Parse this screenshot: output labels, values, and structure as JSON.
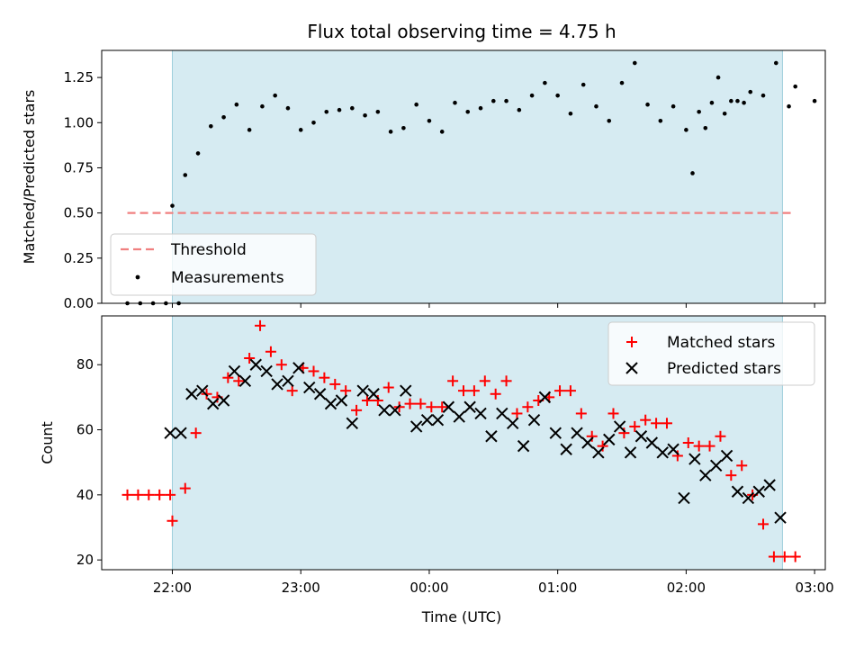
{
  "chart_data": [
    {
      "type": "scatter",
      "title": "Flux total observing time = 4.75 h",
      "ylabel": "Matched/Predicted stars",
      "xlabel": "",
      "ylim": [
        0,
        1.4
      ],
      "xlim": [
        "21:27",
        "03:05"
      ],
      "yticks": [
        "0.00",
        "0.25",
        "0.50",
        "0.75",
        "1.00",
        "1.25"
      ],
      "shaded_range": [
        "22:00",
        "02:45"
      ],
      "threshold": {
        "label": "Threshold",
        "value": 0.5,
        "x_range": [
          "21:39",
          "02:49"
        ],
        "color": "#f08080"
      },
      "legend": {
        "placement": "lower-left",
        "entries": [
          "Threshold",
          "Measurements"
        ]
      },
      "series": [
        {
          "name": "Measurements",
          "marker": "dot",
          "color": "#000000",
          "x": [
            "21:39",
            "21:45",
            "21:51",
            "21:57",
            "22:03",
            "22:00",
            "22:06",
            "22:12",
            "22:18",
            "22:24",
            "22:30",
            "22:36",
            "22:42",
            "22:48",
            "22:54",
            "23:00",
            "23:06",
            "23:12",
            "23:18",
            "23:24",
            "23:30",
            "23:36",
            "23:42",
            "23:48",
            "23:54",
            "00:00",
            "00:06",
            "00:12",
            "00:18",
            "00:24",
            "00:30",
            "00:36",
            "00:42",
            "00:48",
            "00:54",
            "01:00",
            "01:06",
            "01:12",
            "01:18",
            "01:24",
            "01:30",
            "01:36",
            "01:42",
            "01:48",
            "01:54",
            "02:00",
            "02:06",
            "02:12",
            "02:18",
            "02:24",
            "02:30",
            "02:36",
            "02:42",
            "02:48",
            "02:51",
            "03:00",
            "02:27",
            "02:21",
            "02:15",
            "02:09",
            "02:03"
          ],
          "y": [
            0.0,
            0.0,
            0.0,
            0.0,
            0.0,
            0.54,
            0.71,
            0.83,
            0.98,
            1.03,
            1.1,
            0.96,
            1.09,
            1.15,
            1.08,
            0.96,
            1.0,
            1.06,
            1.07,
            1.08,
            1.04,
            1.06,
            0.95,
            0.97,
            1.1,
            1.01,
            0.95,
            1.11,
            1.06,
            1.08,
            1.12,
            1.12,
            1.07,
            1.15,
            1.22,
            1.15,
            1.05,
            1.21,
            1.09,
            1.01,
            1.22,
            1.33,
            1.1,
            1.01,
            1.09,
            0.96,
            1.06,
            1.11,
            1.05,
            1.12,
            1.17,
            1.15,
            1.33,
            1.09,
            1.2,
            1.12,
            1.11,
            1.12,
            1.25,
            0.97,
            0.72
          ]
        }
      ]
    },
    {
      "type": "scatter",
      "title": "",
      "ylabel": "Count",
      "xlabel": "Time (UTC)",
      "ylim": [
        17,
        95
      ],
      "xlim": [
        "21:27",
        "03:05"
      ],
      "xticks": [
        "22:00",
        "23:00",
        "00:00",
        "01:00",
        "02:00",
        "03:00"
      ],
      "yticks": [
        "20",
        "40",
        "60",
        "80"
      ],
      "shaded_range": [
        "22:00",
        "02:45"
      ],
      "legend": {
        "placement": "top-right",
        "entries": [
          "Matched stars",
          "Predicted stars"
        ]
      },
      "series": [
        {
          "name": "Matched stars",
          "marker": "plus",
          "color": "#ff0000",
          "x": [
            "21:39",
            "21:44",
            "21:49",
            "21:54",
            "21:59",
            "22:00",
            "22:06",
            "22:11",
            "22:16",
            "22:21",
            "22:26",
            "22:31",
            "22:36",
            "22:41",
            "22:46",
            "22:51",
            "22:56",
            "23:01",
            "23:06",
            "23:11",
            "23:16",
            "23:21",
            "23:26",
            "23:31",
            "23:36",
            "23:41",
            "23:46",
            "23:51",
            "23:56",
            "00:01",
            "00:06",
            "00:11",
            "00:16",
            "00:21",
            "00:26",
            "00:31",
            "00:36",
            "00:41",
            "00:46",
            "00:51",
            "00:56",
            "01:01",
            "01:06",
            "01:11",
            "01:16",
            "01:21",
            "01:26",
            "01:31",
            "01:36",
            "01:41",
            "01:46",
            "01:51",
            "01:56",
            "02:01",
            "02:06",
            "02:11",
            "02:16",
            "02:21",
            "02:26",
            "02:31",
            "02:36",
            "02:41",
            "02:46",
            "02:51"
          ],
          "y": [
            40,
            40,
            40,
            40,
            40,
            32,
            42,
            59,
            71,
            70,
            76,
            75,
            82,
            92,
            84,
            80,
            72,
            79,
            78,
            76,
            74,
            72,
            66,
            69,
            69,
            73,
            67,
            68,
            68,
            67,
            67,
            75,
            72,
            72,
            75,
            71,
            75,
            65,
            67,
            69,
            70,
            72,
            72,
            65,
            58,
            55,
            65,
            59,
            61,
            63,
            62,
            62,
            52,
            56,
            55,
            55,
            58,
            46,
            49,
            40,
            31,
            21,
            21,
            21
          ],
          "x_extra": []
        },
        {
          "name": "Predicted stars",
          "marker": "x",
          "color": "#000000",
          "x": [
            "21:59",
            "22:04",
            "22:09",
            "22:14",
            "22:19",
            "22:24",
            "22:29",
            "22:34",
            "22:39",
            "22:44",
            "22:49",
            "22:54",
            "22:59",
            "23:04",
            "23:09",
            "23:14",
            "23:19",
            "23:24",
            "23:29",
            "23:34",
            "23:39",
            "23:44",
            "23:49",
            "23:54",
            "23:59",
            "00:04",
            "00:09",
            "00:14",
            "00:19",
            "00:24",
            "00:29",
            "00:34",
            "00:39",
            "00:44",
            "00:49",
            "00:54",
            "00:59",
            "01:04",
            "01:09",
            "01:14",
            "01:19",
            "01:24",
            "01:29",
            "01:34",
            "01:39",
            "01:44",
            "01:49",
            "01:54",
            "01:59",
            "02:04",
            "02:09",
            "02:14",
            "02:19",
            "02:24",
            "02:29",
            "02:34",
            "02:39",
            "02:44"
          ],
          "y": [
            59,
            59,
            71,
            72,
            68,
            69,
            78,
            75,
            80,
            78,
            74,
            75,
            79,
            73,
            71,
            68,
            69,
            62,
            72,
            71,
            66,
            66,
            72,
            61,
            63,
            63,
            67,
            64,
            67,
            65,
            58,
            65,
            62,
            55,
            63,
            70,
            59,
            54,
            59,
            56,
            53,
            57,
            61,
            53,
            58,
            56,
            53,
            54,
            39,
            51,
            46,
            49,
            52,
            41,
            39,
            41,
            43,
            33
          ]
        }
      ]
    }
  ]
}
